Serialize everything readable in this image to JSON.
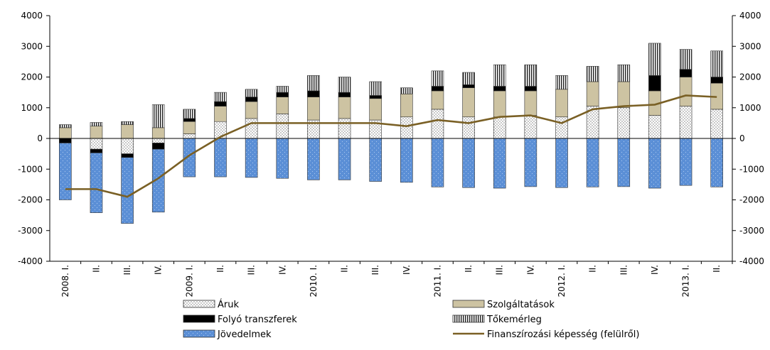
{
  "chart_data": {
    "type": "bar",
    "stacked": true,
    "categories": [
      "2008. I.",
      "II.",
      "III.",
      "IV.",
      "2009. I.",
      "II.",
      "III.",
      "IV.",
      "2010. I.",
      "II.",
      "III.",
      "IV.",
      "2011. I.",
      "II.",
      "III.",
      "IV.",
      "2012. I.",
      "II.",
      "III.",
      "IV.",
      "2013. I.",
      "II."
    ],
    "ylim": [
      -4000,
      4000
    ],
    "yticks": [
      "4000",
      "3000",
      "2000",
      "1000",
      "0",
      "-1000",
      "-2000",
      "-3000",
      "-4000"
    ],
    "series": [
      {
        "name": "Áruk",
        "kind": "bar",
        "values": [
          0,
          -350,
          -500,
          -150,
          150,
          550,
          650,
          800,
          600,
          650,
          600,
          700,
          950,
          700,
          700,
          750,
          700,
          1050,
          1000,
          750,
          1050,
          950
        ]
      },
      {
        "name": "Szolgáltatások",
        "kind": "bar",
        "values": [
          350,
          400,
          450,
          350,
          400,
          500,
          550,
          550,
          750,
          700,
          700,
          750,
          600,
          950,
          850,
          800,
          900,
          800,
          850,
          800,
          950,
          850
        ]
      },
      {
        "name": "Folyó transzferek",
        "kind": "bar",
        "values": [
          -150,
          -120,
          -120,
          -200,
          100,
          150,
          150,
          150,
          200,
          150,
          100,
          0,
          150,
          100,
          150,
          150,
          0,
          0,
          0,
          500,
          250,
          200
        ]
      },
      {
        "name": "Tőkemérleg",
        "kind": "bar",
        "values": [
          100,
          120,
          100,
          750,
          300,
          300,
          250,
          200,
          500,
          500,
          450,
          200,
          500,
          400,
          700,
          700,
          450,
          500,
          550,
          1050,
          650,
          850
        ]
      },
      {
        "name": "Jövedelmek",
        "kind": "bar",
        "values": [
          -1850,
          -1950,
          -2150,
          -2050,
          -1250,
          -1250,
          -1270,
          -1300,
          -1350,
          -1350,
          -1400,
          -1430,
          -1580,
          -1600,
          -1620,
          -1570,
          -1600,
          -1580,
          -1570,
          -1620,
          -1530,
          -1580
        ]
      },
      {
        "name": "Finanszírozási képesség (felülről)",
        "kind": "line",
        "values": [
          -1650,
          -1650,
          -1900,
          -1300,
          -550,
          50,
          500,
          500,
          500,
          500,
          500,
          400,
          600,
          500,
          700,
          750,
          500,
          950,
          1050,
          1100,
          1400,
          1350
        ]
      }
    ],
    "colors": {
      "Áruk": "#ffffff",
      "Szolgáltatások": "#cdc3a2",
      "Folyó transzferek": "#000000",
      "Tőkemérleg": "#ffffff",
      "Jövedelmek": "#5b8fd6",
      "Finanszírozási képesség (felülről)": "#7a6025"
    },
    "grid": false,
    "legend_position": "bottom"
  }
}
